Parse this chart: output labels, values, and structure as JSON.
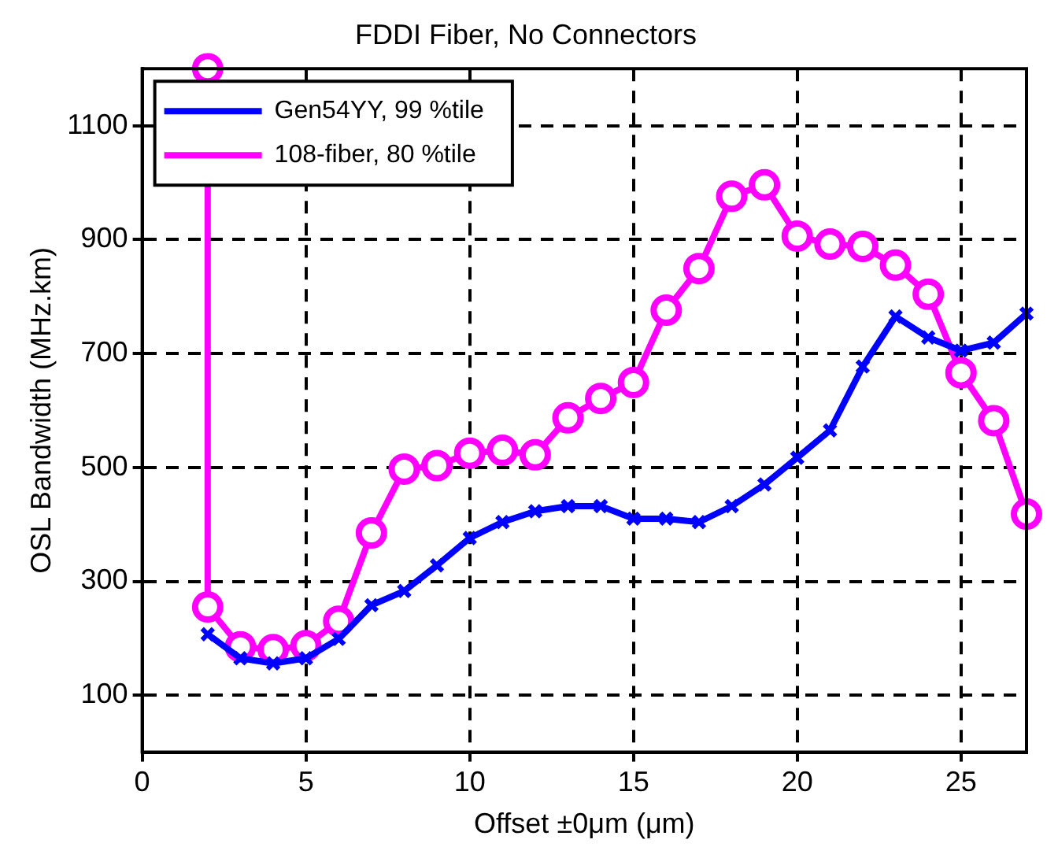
{
  "chart_data": {
    "type": "line",
    "title": "FDDI Fiber, No Connectors",
    "xlabel": "Offset ±0μm (μm)",
    "ylabel": "OSL Bandwidth (MHz.km)",
    "series": [
      {
        "name": "Gen54YY, 99 %tile",
        "color": "#0000ff",
        "marker": "cross",
        "x": [
          2,
          3,
          4,
          5,
          6,
          7,
          8,
          9,
          10,
          11,
          12,
          13,
          14,
          15,
          16,
          17,
          18,
          19,
          20,
          21,
          22,
          23,
          24,
          25,
          26,
          27
        ],
        "values": [
          207,
          165,
          156,
          165,
          199,
          258,
          283,
          328,
          376,
          404,
          423,
          432,
          432,
          410,
          410,
          404,
          432,
          470,
          517,
          565,
          677,
          765,
          728,
          705,
          719,
          770
        ]
      },
      {
        "name": "108-fiber, 80 %tile",
        "color": "#ff00ff",
        "marker": "circle",
        "x": [
          2,
          2,
          3,
          4,
          5,
          6,
          7,
          8,
          9,
          10,
          11,
          12,
          13,
          14,
          15,
          16,
          17,
          18,
          19,
          20,
          21,
          22,
          23,
          24,
          25,
          26,
          27
        ],
        "values": [
          1200,
          255,
          185,
          180,
          187,
          230,
          385,
          497,
          503,
          525,
          530,
          522,
          587,
          621,
          649,
          776,
          849,
          976,
          996,
          906,
          892,
          888,
          855,
          804,
          666,
          582,
          418
        ]
      }
    ],
    "xlim": [
      0,
      27
    ],
    "xticks": [
      0,
      5,
      10,
      15,
      20,
      25
    ],
    "ylim": [
      0,
      1200
    ],
    "yticks": [
      100,
      300,
      500,
      700,
      900,
      1100
    ],
    "grid": true,
    "legend": "top left",
    "line_style": "solid"
  }
}
